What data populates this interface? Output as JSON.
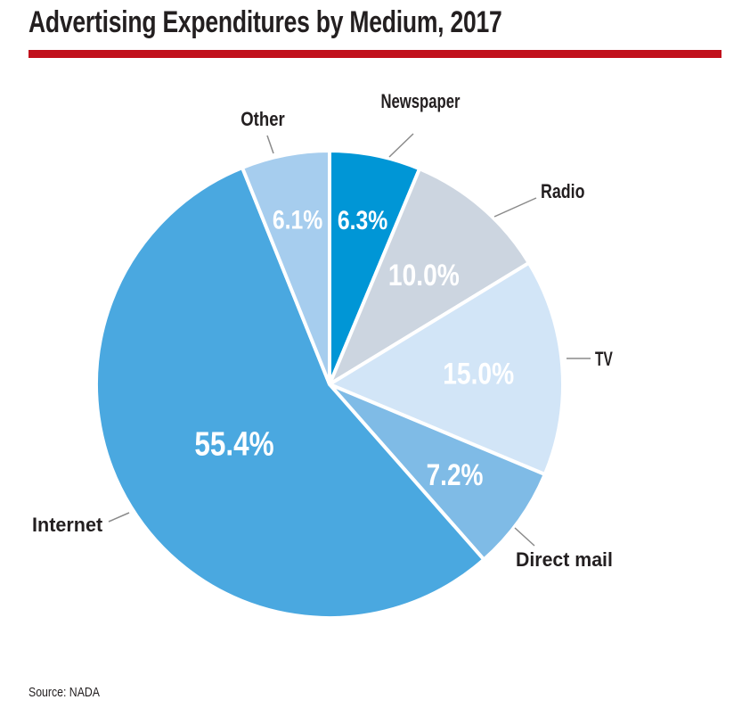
{
  "title": "Advertising Expenditures by Medium, 2017",
  "source": "Source: NADA",
  "colors": {
    "rule": "#c1111c",
    "text": "#231f20",
    "leader": "#8a8a8a"
  },
  "chart_data": {
    "type": "pie",
    "title": "Advertising Expenditures by Medium, 2017",
    "slices": [
      {
        "label": "Newspaper",
        "value": 6.3,
        "value_label": "6.3%",
        "color": "#0096d6",
        "value_color": "#ffffff"
      },
      {
        "label": "Radio",
        "value": 10.0,
        "value_label": "10.0%",
        "color": "#ccd5e0",
        "value_color": "#ffffff"
      },
      {
        "label": "TV",
        "value": 15.0,
        "value_label": "15.0%",
        "color": "#d2e5f7",
        "value_color": "#ffffff"
      },
      {
        "label": "Direct mail",
        "value": 7.2,
        "value_label": "7.2%",
        "color": "#7fbbe6",
        "value_color": "#ffffff"
      },
      {
        "label": "Internet",
        "value": 55.4,
        "value_label": "55.4%",
        "color": "#4aa8e0",
        "value_color": "#ffffff"
      },
      {
        "label": "Other",
        "value": 6.1,
        "value_label": "6.1%",
        "color": "#a6cdee",
        "value_color": "#ffffff"
      }
    ]
  }
}
